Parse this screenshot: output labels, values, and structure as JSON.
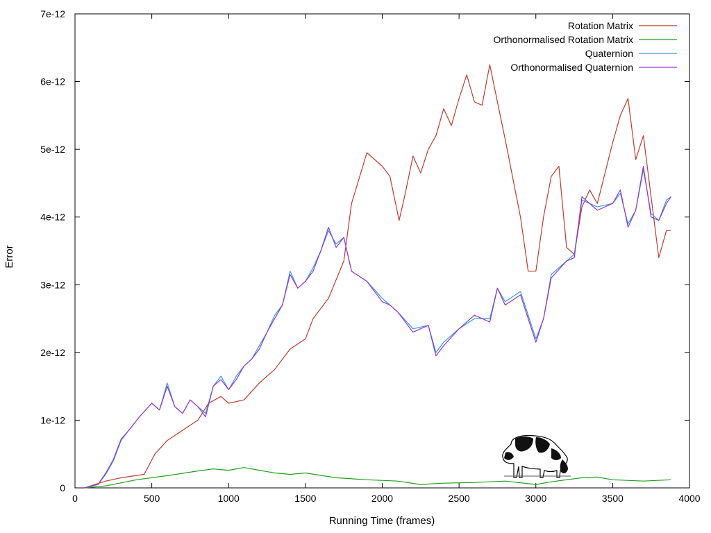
{
  "chart_data": {
    "type": "line",
    "title": "",
    "xlabel": "Running Time (frames)",
    "ylabel": "Error",
    "xlim": [
      0,
      4000
    ],
    "ylim": [
      0,
      7e-12
    ],
    "x_ticks": [
      {
        "value": 0,
        "label": "0"
      },
      {
        "value": 500,
        "label": "500"
      },
      {
        "value": 1000,
        "label": "1000"
      },
      {
        "value": 1500,
        "label": "1500"
      },
      {
        "value": 2000,
        "label": "2000"
      },
      {
        "value": 2500,
        "label": "2500"
      },
      {
        "value": 3000,
        "label": "3000"
      },
      {
        "value": 3500,
        "label": "3500"
      },
      {
        "value": 4000,
        "label": "4000"
      }
    ],
    "y_ticks": [
      {
        "value": 0,
        "label": "0"
      },
      {
        "value": 1e-12,
        "label": "1e-12"
      },
      {
        "value": 2e-12,
        "label": "2e-12"
      },
      {
        "value": 3e-12,
        "label": "3e-12"
      },
      {
        "value": 4e-12,
        "label": "4e-12"
      },
      {
        "value": 5e-12,
        "label": "5e-12"
      },
      {
        "value": 6e-12,
        "label": "6e-12"
      },
      {
        "value": 7e-12,
        "label": "7e-12"
      }
    ],
    "grid": false,
    "legend_position": "top-right",
    "decoration": "cow-illustration",
    "series": [
      {
        "name": "Rotation Matrix",
        "color": "#c0392b",
        "x": [
          60,
          200,
          300,
          450,
          520,
          600,
          700,
          800,
          870,
          950,
          1000,
          1100,
          1200,
          1300,
          1400,
          1500,
          1550,
          1650,
          1750,
          1800,
          1900,
          2000,
          2050,
          2110,
          2150,
          2200,
          2250,
          2300,
          2350,
          2400,
          2450,
          2500,
          2550,
          2600,
          2650,
          2700,
          2750,
          2800,
          2900,
          2950,
          3000,
          3050,
          3100,
          3150,
          3200,
          3250,
          3300,
          3350,
          3400,
          3500,
          3550,
          3600,
          3650,
          3700,
          3750,
          3800,
          3850,
          3880
        ],
        "y": [
          0,
          1e-13,
          1.5e-13,
          2e-13,
          5e-13,
          7e-13,
          8.5e-13,
          1e-12,
          1.25e-12,
          1.35e-12,
          1.25e-12,
          1.3e-12,
          1.55e-12,
          1.75e-12,
          2.05e-12,
          2.2e-12,
          2.5e-12,
          2.8e-12,
          3.35e-12,
          4.2e-12,
          4.95e-12,
          4.75e-12,
          4.6e-12,
          3.95e-12,
          4.35e-12,
          4.9e-12,
          4.65e-12,
          5e-12,
          5.2e-12,
          5.6e-12,
          5.35e-12,
          5.75e-12,
          6.1e-12,
          5.7e-12,
          5.65e-12,
          6.25e-12,
          5.7e-12,
          5.15e-12,
          4e-12,
          3.2e-12,
          3.2e-12,
          4e-12,
          4.6e-12,
          4.75e-12,
          3.55e-12,
          3.45e-12,
          4.15e-12,
          4.4e-12,
          4.2e-12,
          5.1e-12,
          5.5e-12,
          5.75e-12,
          4.85e-12,
          5.2e-12,
          4.3e-12,
          3.4e-12,
          3.8e-12,
          3.8e-12
        ]
      },
      {
        "name": "Orthonormalised Rotation Matrix",
        "color": "#1ca01c",
        "x": [
          60,
          200,
          400,
          600,
          800,
          900,
          1000,
          1100,
          1200,
          1300,
          1400,
          1500,
          1700,
          1900,
          2100,
          2250,
          2400,
          2600,
          2800,
          3000,
          3100,
          3300,
          3400,
          3500,
          3700,
          3880
        ],
        "y": [
          0,
          3e-14,
          1.2e-13,
          1.8e-13,
          2.5e-13,
          2.8e-13,
          2.6e-13,
          3e-13,
          2.6e-13,
          2.2e-13,
          2e-13,
          2.2e-13,
          1.5e-13,
          1.2e-13,
          1e-13,
          5e-14,
          7e-14,
          8e-14,
          1e-13,
          5e-14,
          9e-14,
          1.5e-13,
          1.6e-13,
          1.2e-13,
          1e-13,
          1.2e-13
        ]
      },
      {
        "name": "Quaternion",
        "color": "#2a9fd6",
        "x": [
          60,
          150,
          200,
          250,
          300,
          350,
          420,
          500,
          550,
          600,
          650,
          700,
          750,
          800,
          850,
          900,
          950,
          1000,
          1050,
          1100,
          1150,
          1200,
          1250,
          1300,
          1350,
          1400,
          1450,
          1500,
          1550,
          1600,
          1650,
          1700,
          1750,
          1800,
          1900,
          2000,
          2050,
          2100,
          2200,
          2300,
          2350,
          2400,
          2500,
          2600,
          2700,
          2750,
          2800,
          2900,
          3000,
          3050,
          3100,
          3200,
          3250,
          3300,
          3400,
          3500,
          3550,
          3600,
          3650,
          3700,
          3750,
          3800,
          3850,
          3880
        ],
        "y": [
          0,
          5e-14,
          2e-13,
          4e-13,
          7e-13,
          8.5e-13,
          1.05e-12,
          1.25e-12,
          1.15e-12,
          1.55e-12,
          1.2e-12,
          1.1e-12,
          1.3e-12,
          1.2e-12,
          1.1e-12,
          1.5e-12,
          1.65e-12,
          1.45e-12,
          1.65e-12,
          1.8e-12,
          1.9e-12,
          2.1e-12,
          2.3e-12,
          2.55e-12,
          2.7e-12,
          3.2e-12,
          2.95e-12,
          3.05e-12,
          3.25e-12,
          3.5e-12,
          3.8e-12,
          3.6e-12,
          3.7e-12,
          3.2e-12,
          3.05e-12,
          2.8e-12,
          2.7e-12,
          2.6e-12,
          2.35e-12,
          2.4e-12,
          2e-12,
          2.15e-12,
          2.35e-12,
          2.5e-12,
          2.5e-12,
          2.95e-12,
          2.75e-12,
          2.9e-12,
          2.2e-12,
          2.5e-12,
          3.15e-12,
          3.35e-12,
          3.45e-12,
          4.25e-12,
          4.15e-12,
          4.2e-12,
          4.35e-12,
          3.9e-12,
          4.1e-12,
          4.7e-12,
          4.05e-12,
          3.95e-12,
          4.25e-12,
          4.3e-12
        ]
      },
      {
        "name": "Orthonormalised Quaternion",
        "color": "#9b30d9",
        "x": [
          60,
          150,
          200,
          250,
          300,
          350,
          420,
          500,
          550,
          600,
          650,
          700,
          750,
          800,
          850,
          900,
          950,
          1000,
          1050,
          1100,
          1150,
          1200,
          1250,
          1300,
          1350,
          1400,
          1450,
          1500,
          1550,
          1600,
          1650,
          1700,
          1750,
          1800,
          1900,
          2000,
          2050,
          2100,
          2200,
          2300,
          2350,
          2400,
          2500,
          2600,
          2700,
          2750,
          2800,
          2900,
          3000,
          3050,
          3100,
          3200,
          3250,
          3300,
          3400,
          3500,
          3550,
          3600,
          3650,
          3700,
          3750,
          3800,
          3850,
          3880
        ],
        "y": [
          0,
          5e-14,
          2.2e-13,
          4.2e-13,
          7.2e-13,
          8.5e-13,
          1.05e-12,
          1.25e-12,
          1.15e-12,
          1.5e-12,
          1.2e-12,
          1.1e-12,
          1.3e-12,
          1.2e-12,
          1.05e-12,
          1.5e-12,
          1.6e-12,
          1.45e-12,
          1.6e-12,
          1.8e-12,
          1.9e-12,
          2.05e-12,
          2.3e-12,
          2.5e-12,
          2.7e-12,
          3.15e-12,
          2.95e-12,
          3.05e-12,
          3.2e-12,
          3.5e-12,
          3.85e-12,
          3.55e-12,
          3.7e-12,
          3.2e-12,
          3.05e-12,
          2.75e-12,
          2.7e-12,
          2.6e-12,
          2.3e-12,
          2.4e-12,
          1.95e-12,
          2.1e-12,
          2.35e-12,
          2.55e-12,
          2.45e-12,
          2.95e-12,
          2.7e-12,
          2.85e-12,
          2.15e-12,
          2.5e-12,
          3.1e-12,
          3.35e-12,
          3.4e-12,
          4.3e-12,
          4.1e-12,
          4.2e-12,
          4.4e-12,
          3.85e-12,
          4.1e-12,
          4.75e-12,
          4e-12,
          3.95e-12,
          4.2e-12,
          4.3e-12
        ]
      }
    ]
  }
}
